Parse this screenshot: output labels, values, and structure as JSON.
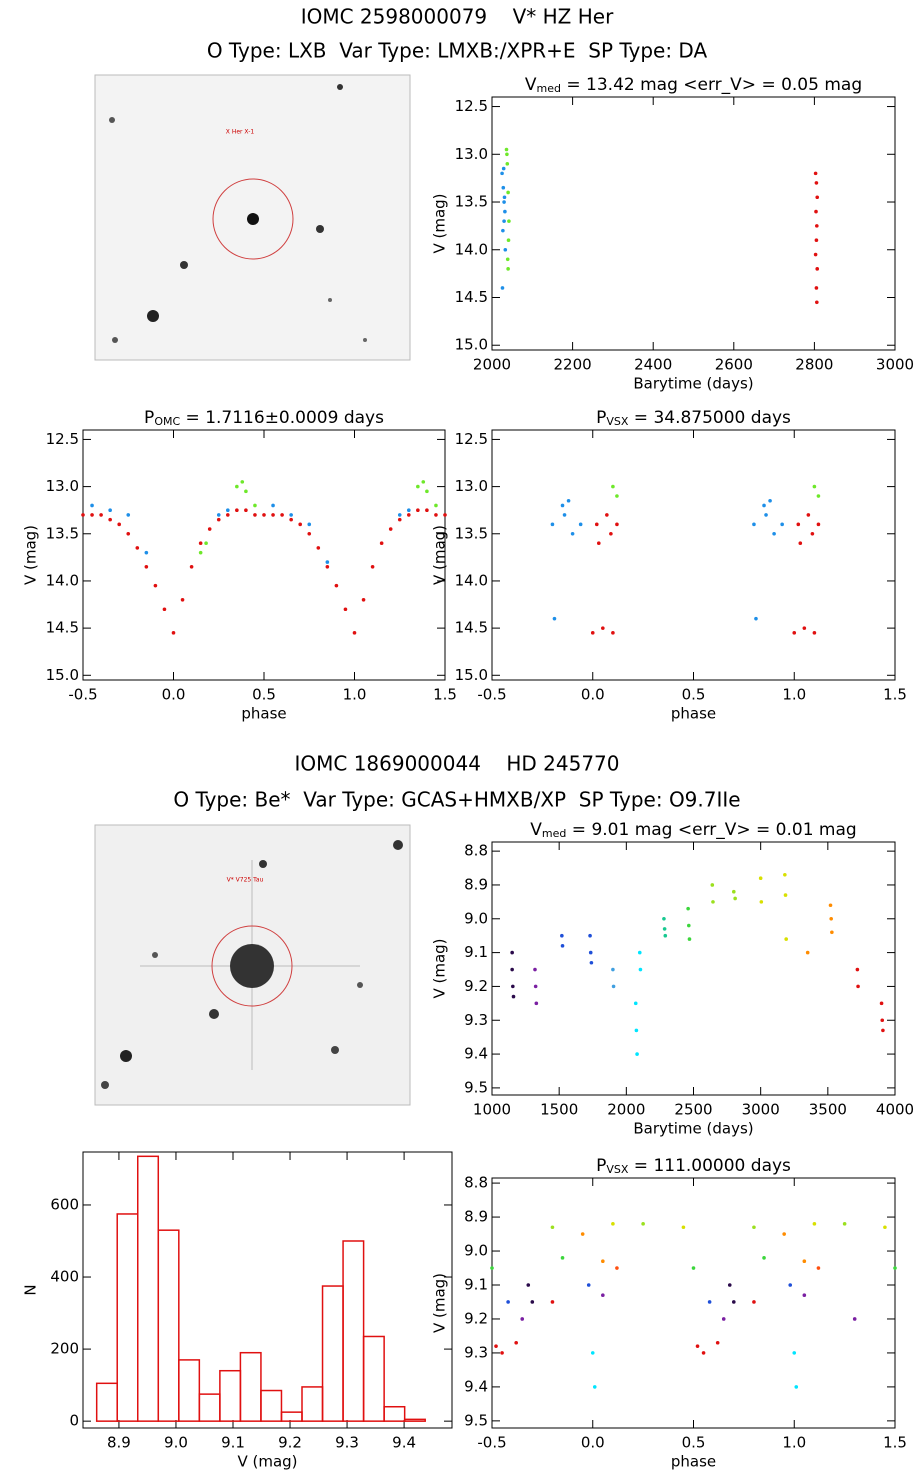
{
  "headers": [
    {
      "title": "IOMC 2598000079    V* HZ Her",
      "subtitle": "O Type: LXB  Var Type: LMXB:/XPR+E  SP Type: DA",
      "image_label": "X Her X-1"
    },
    {
      "title": "IOMC 1869000044    HD 245770",
      "subtitle": "O Type: Be*  Var Type: GCAS+HMXB/XP  SP Type: O9.7IIe",
      "image_label": "V* V725 Tau"
    }
  ],
  "chart_data": [
    {
      "type": "scatter",
      "title": {
        "main": "V",
        "sub": "med",
        "rest": " = 13.42 mag <err_V> = 0.05 mag"
      },
      "xlabel": "Barytime (days)",
      "ylabel": "V (mag)",
      "xlim": [
        2000,
        3000
      ],
      "xticks": [
        2000,
        2200,
        2400,
        2600,
        2800,
        3000
      ],
      "ylim": [
        15.05,
        12.4
      ],
      "yticks": [
        12.5,
        {
          "value": 13,
          "label": "13.0"
        },
        13.5,
        {
          "value": 14,
          "label": "14.0"
        },
        14.5,
        {
          "value": 15,
          "label": "15.0"
        }
      ],
      "series": [
        {
          "color": "#1e8fe8",
          "x": [
            2025,
            2028,
            2030,
            2032,
            2027,
            2031,
            2029,
            2033,
            2026,
            2030
          ],
          "values": [
            13.2,
            13.35,
            13.5,
            13.6,
            13.8,
            13.45,
            13.15,
            14.0,
            14.4,
            13.7
          ]
        },
        {
          "color": "#6ee82a",
          "x": [
            2036,
            2038,
            2040,
            2042,
            2039,
            2037,
            2041,
            2040
          ],
          "values": [
            12.95,
            13.1,
            13.4,
            13.7,
            14.1,
            13.0,
            13.9,
            14.2
          ]
        },
        {
          "color": "#e01010",
          "x": [
            2803,
            2805,
            2807,
            2804,
            2806,
            2805,
            2803,
            2807,
            2805,
            2806
          ],
          "values": [
            13.2,
            13.3,
            13.45,
            13.6,
            13.75,
            13.9,
            14.05,
            14.2,
            14.4,
            14.55
          ]
        }
      ]
    },
    {
      "type": "scatter",
      "title": {
        "main": "P",
        "sub": "OMC",
        "rest": " = 1.7116±0.0009 days"
      },
      "xlabel": "phase",
      "ylabel": "V (mag)",
      "xlim": [
        -0.5,
        1.5
      ],
      "xticks": [
        -0.5,
        {
          "value": 0,
          "label": "0.0"
        },
        0.5,
        {
          "value": 1,
          "label": "1.0"
        },
        1.5
      ],
      "ylim": [
        15.05,
        12.4
      ],
      "yticks": [
        12.5,
        {
          "value": 13,
          "label": "13.0"
        },
        13.5,
        {
          "value": 14,
          "label": "14.0"
        },
        14.5,
        {
          "value": 15,
          "label": "15.0"
        }
      ],
      "series": [
        {
          "color": "#e01010",
          "x": [
            -0.5,
            -0.45,
            -0.4,
            -0.35,
            -0.3,
            -0.25,
            -0.2,
            -0.15,
            -0.1,
            -0.05,
            0,
            0.05,
            0.1,
            0.15,
            0.2,
            0.25,
            0.3,
            0.35,
            0.4,
            0.45,
            0.5,
            0.55,
            0.6,
            0.65,
            0.7,
            0.75,
            0.8,
            0.85,
            0.9,
            0.95,
            1,
            1.05,
            1.1,
            1.15,
            1.2,
            1.25,
            1.3,
            1.35,
            1.4,
            1.45,
            1.5
          ],
          "values": [
            13.3,
            13.3,
            13.3,
            13.35,
            13.4,
            13.5,
            13.65,
            13.85,
            14.05,
            14.3,
            14.55,
            14.2,
            13.85,
            13.6,
            13.45,
            13.35,
            13.3,
            13.25,
            13.25,
            13.3,
            13.3,
            13.3,
            13.3,
            13.35,
            13.4,
            13.5,
            13.65,
            13.85,
            14.05,
            14.3,
            14.55,
            14.2,
            13.85,
            13.6,
            13.45,
            13.35,
            13.3,
            13.25,
            13.25,
            13.3,
            13.3
          ]
        },
        {
          "color": "#1e8fe8",
          "x": [
            -0.45,
            -0.35,
            -0.25,
            -0.15,
            0.25,
            0.3,
            0.55,
            0.65,
            0.75,
            0.85,
            1.25,
            1.3
          ],
          "values": [
            13.2,
            13.25,
            13.3,
            13.7,
            13.3,
            13.25,
            13.2,
            13.3,
            13.4,
            13.8,
            13.3,
            13.25
          ]
        },
        {
          "color": "#6ee82a",
          "x": [
            0.35,
            0.38,
            0.4,
            0.45,
            0.18,
            0.15,
            1.35,
            1.38,
            1.4,
            1.45
          ],
          "values": [
            13.0,
            12.95,
            13.05,
            13.2,
            13.6,
            13.7,
            13.0,
            12.95,
            13.05,
            13.2
          ]
        }
      ]
    },
    {
      "type": "scatter",
      "title": {
        "main": "P",
        "sub": "VSX",
        "rest": " = 34.875000 days"
      },
      "xlabel": "phase",
      "ylabel": "V (mag)",
      "xlim": [
        -0.5,
        1.5
      ],
      "xticks": [
        -0.5,
        {
          "value": 0,
          "label": "0.0"
        },
        0.5,
        {
          "value": 1,
          "label": "1.0"
        },
        1.5
      ],
      "ylim": [
        15.05,
        12.4
      ],
      "yticks": [
        12.5,
        {
          "value": 13,
          "label": "13.0"
        },
        13.5,
        {
          "value": 14,
          "label": "14.0"
        },
        14.5,
        {
          "value": 15,
          "label": "15.0"
        }
      ],
      "series": [
        {
          "color": "#1e8fe8",
          "x": [
            -0.2,
            -0.19,
            -0.15,
            -0.14,
            -0.12,
            -0.1,
            -0.06,
            0.8,
            0.81,
            0.85,
            0.86,
            0.88,
            0.9,
            0.94
          ],
          "values": [
            13.4,
            14.4,
            13.2,
            13.3,
            13.15,
            13.5,
            13.4,
            13.4,
            14.4,
            13.2,
            13.3,
            13.15,
            13.5,
            13.4
          ]
        },
        {
          "color": "#e01010",
          "x": [
            0,
            0.02,
            0.03,
            0.05,
            0.07,
            0.09,
            0.1,
            0.12,
            1,
            1.02,
            1.03,
            1.05,
            1.07,
            1.09,
            1.1,
            1.12
          ],
          "values": [
            14.55,
            13.4,
            13.6,
            14.5,
            13.3,
            13.5,
            14.55,
            13.4,
            14.55,
            13.4,
            13.6,
            14.5,
            13.3,
            13.5,
            14.55,
            13.4
          ]
        },
        {
          "color": "#6ee82a",
          "x": [
            0.1,
            0.12,
            1.1,
            1.12
          ],
          "values": [
            13.0,
            13.1,
            13.0,
            13.1
          ]
        }
      ]
    },
    {
      "type": "scatter",
      "title": {
        "main": "V",
        "sub": "med",
        "rest": " = 9.01 mag <err_V> = 0.01 mag"
      },
      "xlabel": "Barytime (days)",
      "ylabel": "V (mag)",
      "xlim": [
        1000,
        4000
      ],
      "xticks": [
        1000,
        1500,
        2000,
        2500,
        3000,
        3500,
        4000
      ],
      "ylim": [
        9.521,
        8.773
      ],
      "yticks": [
        8.8,
        8.9,
        {
          "value": 9,
          "label": "9.0"
        },
        9.1,
        9.2,
        9.3,
        9.4,
        9.5
      ],
      "series": [
        {
          "color": "#2a0a4a",
          "x": [
            1150,
            1150,
            1155,
            1160
          ],
          "values": [
            9.1,
            9.15,
            9.2,
            9.23
          ]
        },
        {
          "color": "#7a1fa2",
          "x": [
            1320,
            1325,
            1330
          ],
          "values": [
            9.15,
            9.2,
            9.25
          ]
        },
        {
          "color": "#1f4fd8",
          "x": [
            1520,
            1525,
            1730,
            1735,
            1740
          ],
          "values": [
            9.05,
            9.08,
            9.05,
            9.1,
            9.13
          ]
        },
        {
          "color": "#3f9fe0",
          "x": [
            1900,
            1905
          ],
          "values": [
            9.15,
            9.2
          ]
        },
        {
          "color": "#00e5ff",
          "x": [
            2070,
            2075,
            2080,
            2100,
            2105
          ],
          "values": [
            9.25,
            9.33,
            9.4,
            9.1,
            9.15
          ]
        },
        {
          "color": "#17c890",
          "x": [
            2280,
            2285,
            2290
          ],
          "values": [
            9.0,
            9.03,
            9.05
          ]
        },
        {
          "color": "#3cd63c",
          "x": [
            2460,
            2465,
            2470
          ],
          "values": [
            8.97,
            9.02,
            9.06
          ]
        },
        {
          "color": "#9be01e",
          "x": [
            2640,
            2645,
            2800,
            2810
          ],
          "values": [
            8.9,
            8.95,
            8.92,
            8.94
          ]
        },
        {
          "color": "#d8e000",
          "x": [
            3000,
            3005,
            3180,
            3185,
            3190
          ],
          "values": [
            8.88,
            8.95,
            8.87,
            8.93,
            9.06
          ]
        },
        {
          "color": "#ff8c00",
          "x": [
            3350,
            3520,
            3525,
            3530
          ],
          "values": [
            9.1,
            8.96,
            9.0,
            9.04
          ]
        },
        {
          "color": "#e01010",
          "x": [
            3720,
            3725,
            3900,
            3905,
            3910
          ],
          "values": [
            9.15,
            9.2,
            9.25,
            9.3,
            9.33
          ]
        }
      ]
    },
    {
      "type": "histogram",
      "xlabel": "V (mag)",
      "ylabel": "N",
      "color": "#e01010",
      "xlim": [
        8.837,
        9.484
      ],
      "xticks": [
        8.9,
        {
          "value": 9,
          "label": "9.0"
        },
        9.1,
        9.2,
        9.3,
        9.4
      ],
      "ylim": [
        -19,
        747
      ],
      "yticks": [
        0,
        200,
        400,
        600
      ],
      "bins": [
        8.861,
        8.897,
        8.933,
        8.969,
        9.005,
        9.041,
        9.077,
        9.113,
        9.149,
        9.185,
        9.221,
        9.257,
        9.293,
        9.329,
        9.365,
        9.401,
        9.437
      ],
      "values": [
        105,
        575,
        735,
        530,
        170,
        75,
        140,
        190,
        85,
        25,
        95,
        375,
        500,
        235,
        40,
        5
      ]
    },
    {
      "type": "scatter",
      "title": {
        "main": "P",
        "sub": "VSX",
        "rest": " = 111.00000 days"
      },
      "xlabel": "phase",
      "ylabel": "V (mag)",
      "xlim": [
        -0.5,
        1.5
      ],
      "xticks": [
        -0.5,
        {
          "value": 0,
          "label": "0.0"
        },
        0.5,
        {
          "value": 1,
          "label": "1.0"
        },
        1.5
      ],
      "ylim": [
        9.521,
        8.785
      ],
      "yticks": [
        8.8,
        8.9,
        {
          "value": 9,
          "label": "9.0"
        },
        9.1,
        9.2,
        9.3,
        9.4,
        9.5
      ],
      "series": [
        {
          "color": "#e01010",
          "x": [
            -0.48,
            -0.45,
            -0.38,
            -0.2,
            0.52,
            0.55,
            0.62,
            0.8
          ],
          "values": [
            9.28,
            9.3,
            9.27,
            9.15,
            9.28,
            9.3,
            9.27,
            9.15
          ]
        },
        {
          "color": "#2a0a4a",
          "x": [
            -0.32,
            -0.3,
            0.68,
            0.7
          ],
          "values": [
            9.1,
            9.15,
            9.1,
            9.15
          ]
        },
        {
          "color": "#7a1fa2",
          "x": [
            -0.35,
            0.05,
            0.65,
            1.05,
            1.3
          ],
          "values": [
            9.2,
            9.13,
            9.2,
            9.13,
            9.2
          ]
        },
        {
          "color": "#1f4fd8",
          "x": [
            -0.42,
            -0.02,
            0.58,
            0.98
          ],
          "values": [
            9.15,
            9.1,
            9.15,
            9.1
          ]
        },
        {
          "color": "#00e5ff",
          "x": [
            0,
            0.01,
            1,
            1.01
          ],
          "values": [
            9.3,
            9.4,
            9.3,
            9.4
          ]
        },
        {
          "color": "#3cd63c",
          "x": [
            -0.5,
            -0.15,
            0.5,
            0.85,
            1.5
          ],
          "values": [
            9.05,
            9.02,
            9.05,
            9.02,
            9.05
          ]
        },
        {
          "color": "#9be01e",
          "x": [
            -0.2,
            0.25,
            0.8,
            1.25
          ],
          "values": [
            8.93,
            8.92,
            8.93,
            8.92
          ]
        },
        {
          "color": "#d8e000",
          "x": [
            0.1,
            0.45,
            1.1,
            1.45
          ],
          "values": [
            8.92,
            8.93,
            8.92,
            8.93
          ]
        },
        {
          "color": "#ff8c00",
          "x": [
            -0.05,
            0.05,
            0.95,
            1.05
          ],
          "values": [
            8.95,
            9.03,
            8.95,
            9.03
          ]
        },
        {
          "color": "#ff5010",
          "x": [
            0.12,
            1.12
          ],
          "values": [
            9.05,
            9.05
          ]
        }
      ]
    }
  ]
}
